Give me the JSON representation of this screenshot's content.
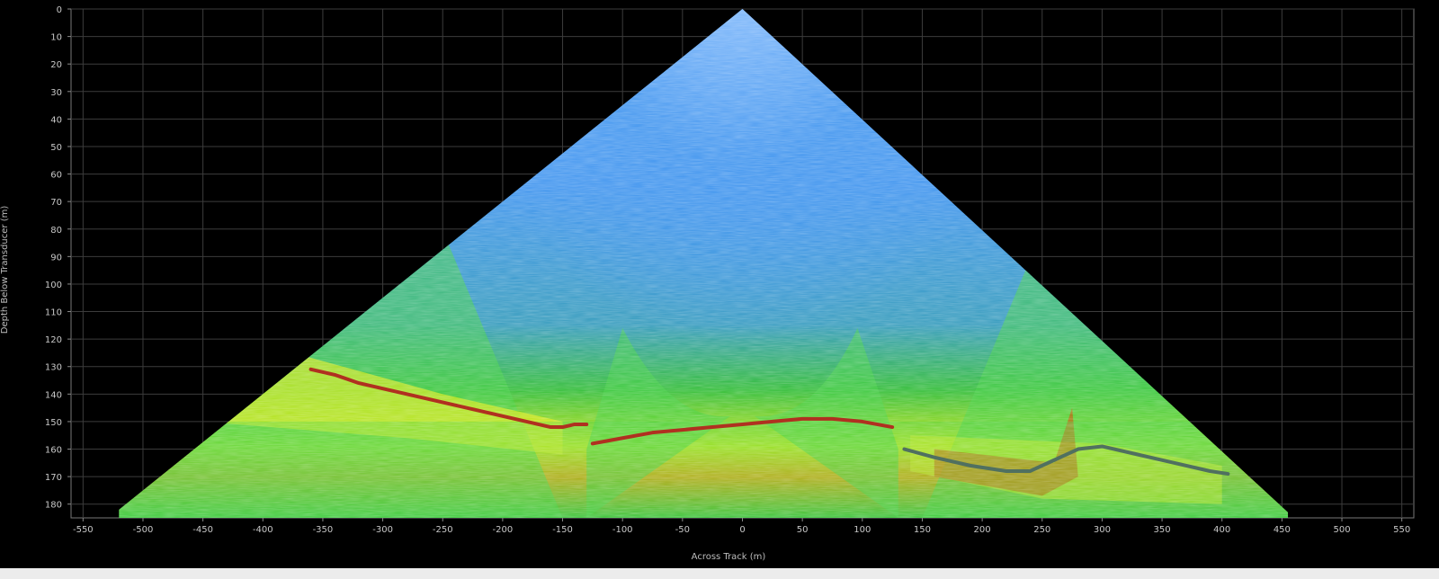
{
  "chart_data": {
    "type": "heatmap",
    "title": "",
    "xlabel": "Across Track (m)",
    "ylabel": "Depth Below Transducer (m)",
    "xlim": [
      -560,
      560
    ],
    "ylim": [
      0,
      185
    ],
    "y_inverted": true,
    "grid": true,
    "x_ticks": [
      -550,
      -500,
      -450,
      -400,
      -350,
      -300,
      -250,
      -200,
      -150,
      -100,
      -50,
      0,
      50,
      100,
      150,
      200,
      250,
      300,
      350,
      400,
      450,
      500,
      550
    ],
    "y_ticks": [
      0,
      10,
      20,
      30,
      40,
      50,
      60,
      70,
      80,
      90,
      100,
      110,
      120,
      130,
      140,
      150,
      160,
      170,
      180
    ],
    "swath": {
      "apex": [
        0,
        0
      ],
      "left_edge": [
        -520,
        182
      ],
      "right_edge": [
        455,
        183
      ]
    },
    "series": [
      {
        "x": [
          -360,
          -340,
          -320,
          -300,
          -280,
          -260,
          -240,
          -220,
          -200,
          -180,
          -160,
          -150,
          -140,
          -130
        ],
        "y": [
          131,
          133,
          136,
          138,
          140,
          142,
          144,
          146,
          148,
          150,
          152,
          152,
          151,
          151
        ]
      },
      {
        "x": [
          -125,
          -100,
          -75,
          -50,
          -25,
          0,
          25,
          50,
          75,
          100,
          125
        ],
        "y": [
          158,
          156,
          154,
          153,
          152,
          151,
          150,
          149,
          149,
          150,
          152
        ]
      },
      {
        "x": [
          135,
          160,
          190,
          220,
          240,
          260,
          280,
          300,
          330,
          360,
          390,
          405
        ],
        "y": [
          160,
          163,
          166,
          168,
          168,
          164,
          160,
          159,
          162,
          165,
          168,
          169
        ]
      }
    ],
    "colors": {
      "shallow": "#5aa6ff",
      "mid": "#4cd44c",
      "high": "#f0f020",
      "peak": "#e04000",
      "bottom_line": "#b03020",
      "far_line": "#507060"
    }
  }
}
